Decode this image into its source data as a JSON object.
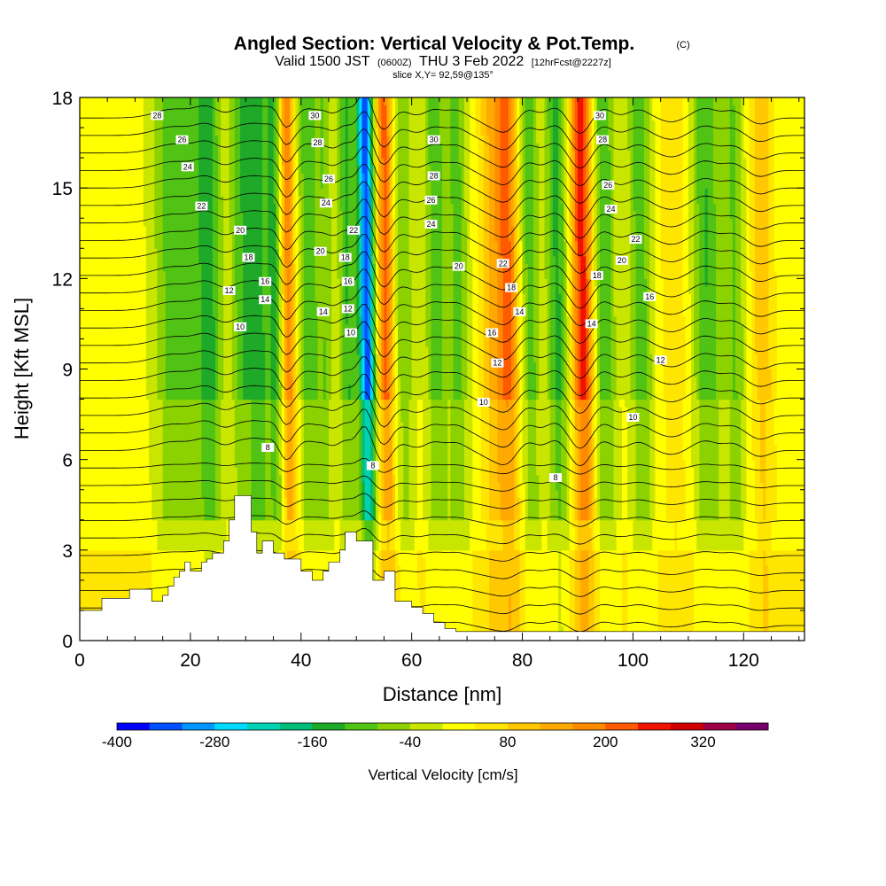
{
  "title": {
    "main": "Angled Section: Vertical Velocity & Pot.Temp.",
    "main_unit": "(C)",
    "valid_prefix": "Valid 1500 JST",
    "valid_z": "(0600Z)",
    "valid_date": "THU 3 Feb 2022",
    "valid_fcst": "[12hrFcst@2227z]",
    "slice": "slice X,Y= 92,59@135°"
  },
  "chart_data": {
    "type": "heatmap",
    "xlabel": "Distance [nm]",
    "ylabel": "Height [Kft MSL]",
    "xlim": [
      0,
      131
    ],
    "ylim": [
      0,
      18
    ],
    "xticks": [
      0,
      20,
      40,
      60,
      80,
      100,
      120
    ],
    "yticks": [
      0,
      3,
      6,
      9,
      12,
      15,
      18
    ],
    "colorbar": {
      "label": "Vertical Velocity [cm/s]",
      "levels": [
        -400,
        -360,
        -320,
        -280,
        -240,
        -200,
        -160,
        -120,
        -80,
        -40,
        0,
        40,
        80,
        120,
        160,
        200,
        240,
        280,
        320,
        360,
        400
      ],
      "tick_labels": [
        "-400",
        "-280",
        "-160",
        "-40",
        "80",
        "200",
        "320"
      ],
      "tick_values": [
        -400,
        -280,
        -160,
        -40,
        80,
        200,
        320
      ],
      "colors": [
        "#0000ff",
        "#0050ff",
        "#0096ff",
        "#00dcff",
        "#00d2b4",
        "#00be78",
        "#1eaa28",
        "#50c314",
        "#8cd200",
        "#c8e600",
        "#ffff00",
        "#ffe600",
        "#ffc800",
        "#ffaa00",
        "#ff8c00",
        "#ff5a00",
        "#f01400",
        "#d20000",
        "#a00046",
        "#78006e"
      ]
    },
    "vertical_velocity_bands": [
      {
        "x": 17,
        "w": 4,
        "v": -130
      },
      {
        "x": 23,
        "w": 2.5,
        "v": -150
      },
      {
        "x": 29,
        "w": 2,
        "v": -130
      },
      {
        "x": 32,
        "w": 1.8,
        "v": -140
      },
      {
        "x": 35,
        "w": 1.6,
        "v": -150
      },
      {
        "x": 37.2,
        "w": 1.4,
        "v": 180
      },
      {
        "x": 41,
        "w": 1.8,
        "v": -130
      },
      {
        "x": 44,
        "w": 1.5,
        "v": -90
      },
      {
        "x": 48,
        "w": 1.6,
        "v": -140
      },
      {
        "x": 51.5,
        "w": 1.5,
        "v": -360
      },
      {
        "x": 55,
        "w": 1.6,
        "v": 200
      },
      {
        "x": 58,
        "w": 2,
        "v": -100
      },
      {
        "x": 64,
        "w": 2,
        "v": -120
      },
      {
        "x": 68,
        "w": 2,
        "v": -110
      },
      {
        "x": 74,
        "w": 2,
        "v": 90
      },
      {
        "x": 77,
        "w": 2,
        "v": 190
      },
      {
        "x": 81,
        "w": 1.8,
        "v": -120
      },
      {
        "x": 86,
        "w": 2,
        "v": -150
      },
      {
        "x": 90.5,
        "w": 2,
        "v": 240
      },
      {
        "x": 94.5,
        "w": 2,
        "v": -140
      },
      {
        "x": 101,
        "w": 2.2,
        "v": -120
      },
      {
        "x": 107,
        "w": 2.2,
        "v": 60
      },
      {
        "x": 113,
        "w": 2.5,
        "v": -140
      },
      {
        "x": 118,
        "w": 2,
        "v": -100
      },
      {
        "x": 123,
        "w": 2,
        "v": 90
      }
    ],
    "terrain": {
      "x": [
        0,
        4,
        4,
        9,
        9,
        13,
        13,
        15,
        15,
        16,
        16,
        17,
        17,
        18,
        18,
        19,
        19,
        20,
        20,
        22,
        22,
        23,
        23,
        24,
        24,
        26,
        26,
        27,
        27,
        28,
        28,
        31,
        31,
        32,
        32,
        33,
        33,
        35,
        35,
        37,
        37,
        40,
        40,
        42,
        42,
        44,
        44,
        45,
        45,
        47,
        47,
        48,
        48,
        50,
        50,
        53,
        53,
        55,
        55,
        57,
        57,
        60,
        60,
        62,
        62,
        64,
        64,
        66,
        66,
        68,
        68,
        71,
        71,
        131
      ],
      "y": [
        1.0,
        1.0,
        1.4,
        1.4,
        1.7,
        1.7,
        1.3,
        1.3,
        1.5,
        1.5,
        1.8,
        1.8,
        2.1,
        2.1,
        2.3,
        2.3,
        2.6,
        2.6,
        2.3,
        2.3,
        2.6,
        2.6,
        2.7,
        2.7,
        2.9,
        2.9,
        3.3,
        3.3,
        4.0,
        4.0,
        4.8,
        4.8,
        3.6,
        3.6,
        2.9,
        2.9,
        3.3,
        3.3,
        2.9,
        2.9,
        2.7,
        2.7,
        2.3,
        2.3,
        2.0,
        2.0,
        2.3,
        2.3,
        2.6,
        2.6,
        3.0,
        3.0,
        3.6,
        3.6,
        3.3,
        3.3,
        2.0,
        2.0,
        2.3,
        2.3,
        1.3,
        1.3,
        1.1,
        1.1,
        0.9,
        0.9,
        0.6,
        0.6,
        0.4,
        0.4,
        0.3,
        0.3,
        0.3,
        0.3
      ]
    },
    "potential_temperature_labels": [
      {
        "text": "28",
        "x": 14,
        "y": 17.4
      },
      {
        "text": "26",
        "x": 18.5,
        "y": 16.6
      },
      {
        "text": "24",
        "x": 19.5,
        "y": 15.7
      },
      {
        "text": "22",
        "x": 22,
        "y": 14.4
      },
      {
        "text": "20",
        "x": 29,
        "y": 13.6
      },
      {
        "text": "18",
        "x": 30.5,
        "y": 12.7
      },
      {
        "text": "16",
        "x": 33.5,
        "y": 11.9
      },
      {
        "text": "14",
        "x": 33.5,
        "y": 11.3
      },
      {
        "text": "12",
        "x": 27,
        "y": 11.6
      },
      {
        "text": "10",
        "x": 29,
        "y": 10.4
      },
      {
        "text": "30",
        "x": 42.5,
        "y": 17.4
      },
      {
        "text": "28",
        "x": 43,
        "y": 16.5
      },
      {
        "text": "26",
        "x": 45,
        "y": 15.3
      },
      {
        "text": "24",
        "x": 44.5,
        "y": 14.5
      },
      {
        "text": "22",
        "x": 49.5,
        "y": 13.6
      },
      {
        "text": "20",
        "x": 43.5,
        "y": 12.9
      },
      {
        "text": "18",
        "x": 48,
        "y": 12.7
      },
      {
        "text": "16",
        "x": 48.5,
        "y": 11.9
      },
      {
        "text": "14",
        "x": 44,
        "y": 10.9
      },
      {
        "text": "12",
        "x": 48.5,
        "y": 11.0
      },
      {
        "text": "10",
        "x": 49,
        "y": 10.2
      },
      {
        "text": "8",
        "x": 34,
        "y": 6.4
      },
      {
        "text": "8",
        "x": 53,
        "y": 5.8
      },
      {
        "text": "30",
        "x": 64,
        "y": 16.6
      },
      {
        "text": "28",
        "x": 64,
        "y": 15.4
      },
      {
        "text": "26",
        "x": 63.5,
        "y": 14.6
      },
      {
        "text": "24",
        "x": 63.5,
        "y": 13.8
      },
      {
        "text": "20",
        "x": 68.5,
        "y": 12.4
      },
      {
        "text": "22",
        "x": 76.5,
        "y": 12.5
      },
      {
        "text": "18",
        "x": 78,
        "y": 11.7
      },
      {
        "text": "14",
        "x": 79.5,
        "y": 10.9
      },
      {
        "text": "16",
        "x": 74.5,
        "y": 10.2
      },
      {
        "text": "12",
        "x": 75.5,
        "y": 9.2
      },
      {
        "text": "10",
        "x": 73,
        "y": 7.9
      },
      {
        "text": "8",
        "x": 86,
        "y": 5.4
      },
      {
        "text": "30",
        "x": 94,
        "y": 17.4
      },
      {
        "text": "28",
        "x": 94.5,
        "y": 16.6
      },
      {
        "text": "26",
        "x": 95.5,
        "y": 15.1
      },
      {
        "text": "24",
        "x": 96,
        "y": 14.3
      },
      {
        "text": "22",
        "x": 100.5,
        "y": 13.3
      },
      {
        "text": "20",
        "x": 98,
        "y": 12.6
      },
      {
        "text": "18",
        "x": 93.5,
        "y": 12.1
      },
      {
        "text": "16",
        "x": 103,
        "y": 11.4
      },
      {
        "text": "14",
        "x": 92.5,
        "y": 10.5
      },
      {
        "text": "12",
        "x": 105,
        "y": 9.3
      },
      {
        "text": "10",
        "x": 100,
        "y": 7.4
      }
    ]
  }
}
